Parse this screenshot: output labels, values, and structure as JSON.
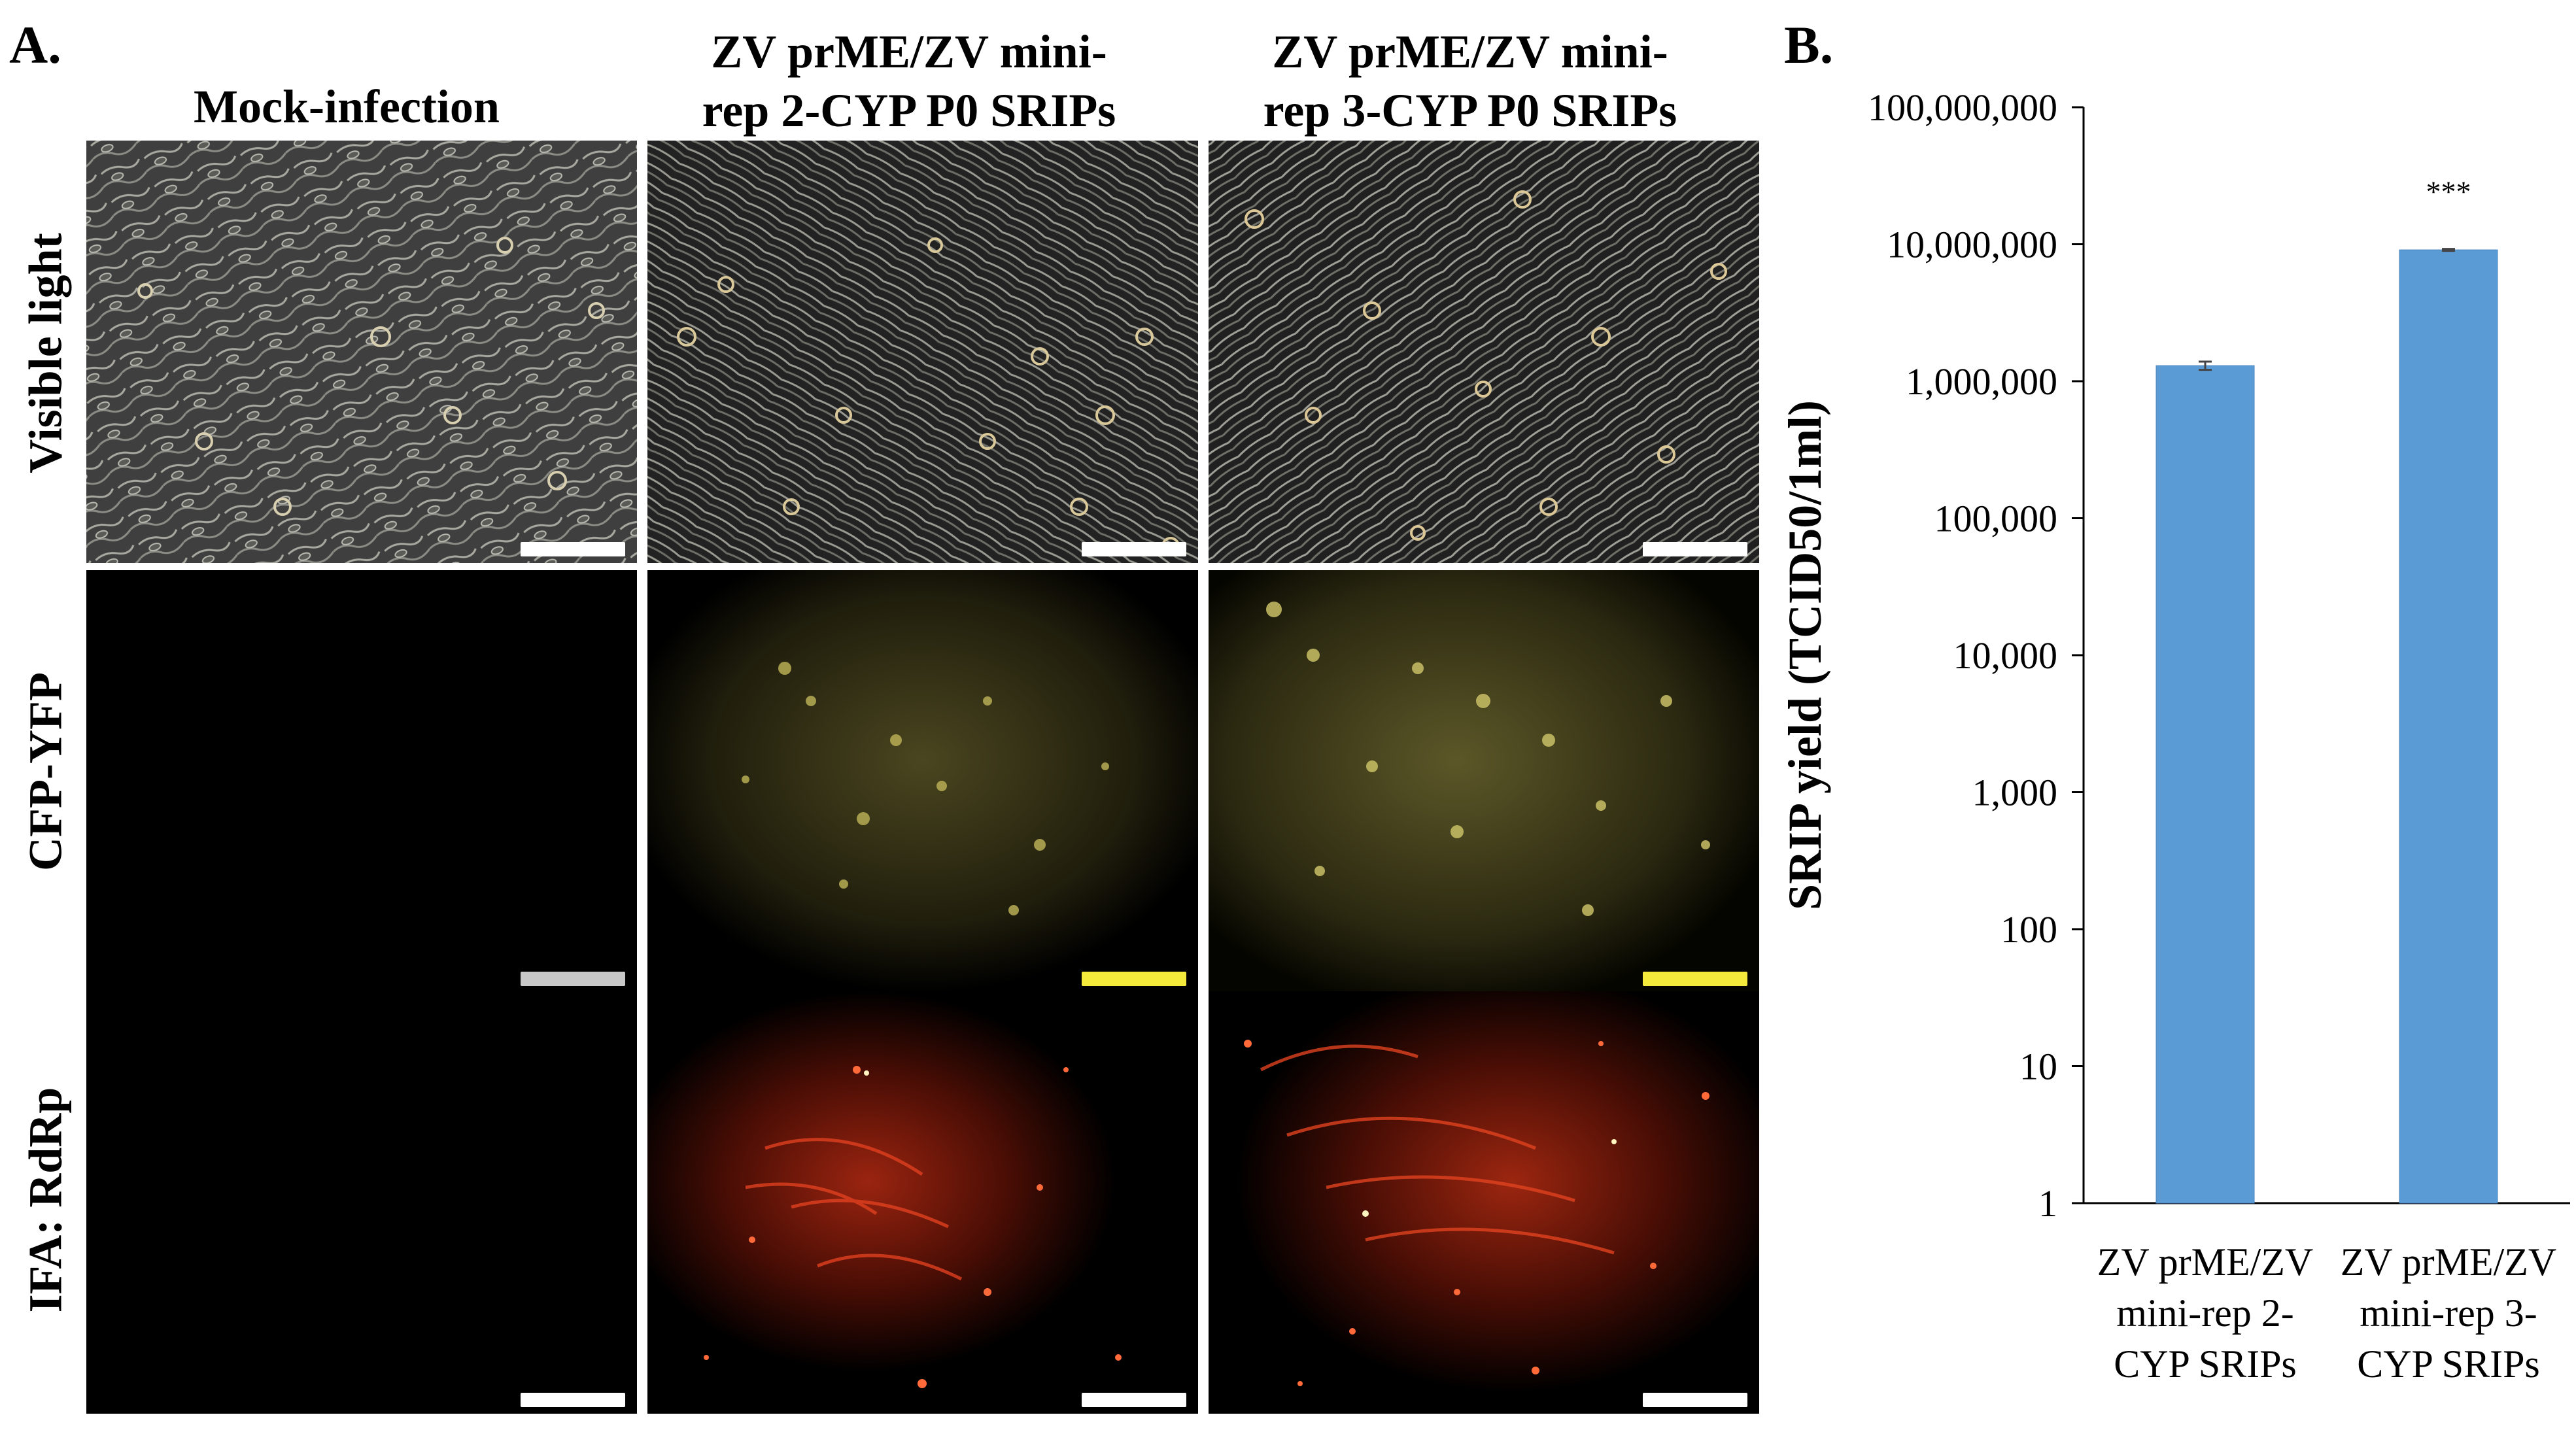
{
  "colors": {
    "bar": "#5b9bd5",
    "bar_stroke": "#4a86bf",
    "cfp_yfp_glow": "#c9c06a",
    "ifa_glow": "#e23b1e",
    "scalebar_visible": "#ffffff",
    "scalebar_mock": "#c8c8c8",
    "scalebar_yellow": "#f4ea3c"
  },
  "panel_a": {
    "letter": "A.",
    "columns": [
      {
        "title_line1": "Mock-infection",
        "title_line2": ""
      },
      {
        "title_line1": "ZV prME/ZV mini-",
        "title_line2": "rep 2-CYP P0 SRIPs"
      },
      {
        "title_line1": "ZV prME/ZV mini-",
        "title_line2": "rep 3-CYP P0 SRIPs"
      }
    ],
    "rows": [
      {
        "label": "Visible light"
      },
      {
        "label": "CFP-YFP"
      },
      {
        "label": "IFA: RdRp"
      }
    ]
  },
  "panel_b": {
    "letter": "B."
  },
  "chart_data": {
    "type": "bar",
    "title": "",
    "xlabel": "",
    "ylabel": "SRIP yield (TCID50/1ml)",
    "yscale": "log",
    "ylim": [
      1,
      100000000
    ],
    "yticks": [
      1,
      10,
      100,
      1000,
      10000,
      100000,
      1000000,
      10000000,
      100000000
    ],
    "ytick_labels": [
      "1",
      "10",
      "100",
      "1,000",
      "10,000",
      "100,000",
      "1,000,000",
      "10,000,000",
      "100,000,000"
    ],
    "categories": [
      [
        "ZV prME/ZV",
        "mini-rep 2-",
        "CYP SRIPs"
      ],
      [
        "ZV prME/ZV",
        "mini-rep 3-",
        "CYP SRIPs"
      ]
    ],
    "values": [
      1300000,
      9100000
    ],
    "errors": [
      90000,
      150000
    ],
    "annotations": [
      "",
      "***"
    ],
    "grid": false,
    "legend": "none"
  }
}
